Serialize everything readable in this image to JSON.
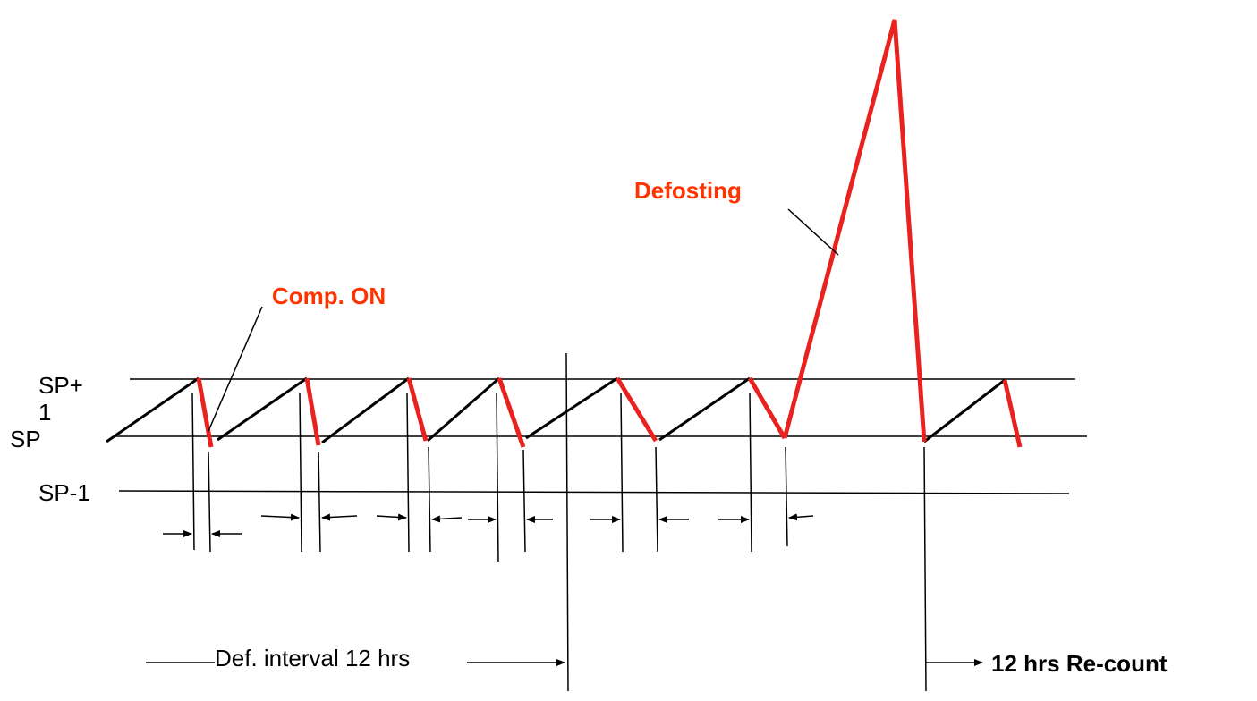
{
  "labels": {
    "sp_plus_1_top": "SP+",
    "sp_plus_1_bottom": "1",
    "sp": "SP",
    "sp_minus_1": "SP-1",
    "comp_on": "Comp. ON",
    "defrosting": "Defosting",
    "def_interval": "Def. interval 12 hrs",
    "recount": "12 hrs Re-count"
  },
  "colors": {
    "cooling_segment": "#e8231f",
    "warming_segment": "#000000",
    "highlight_text": "#ff3300"
  }
}
